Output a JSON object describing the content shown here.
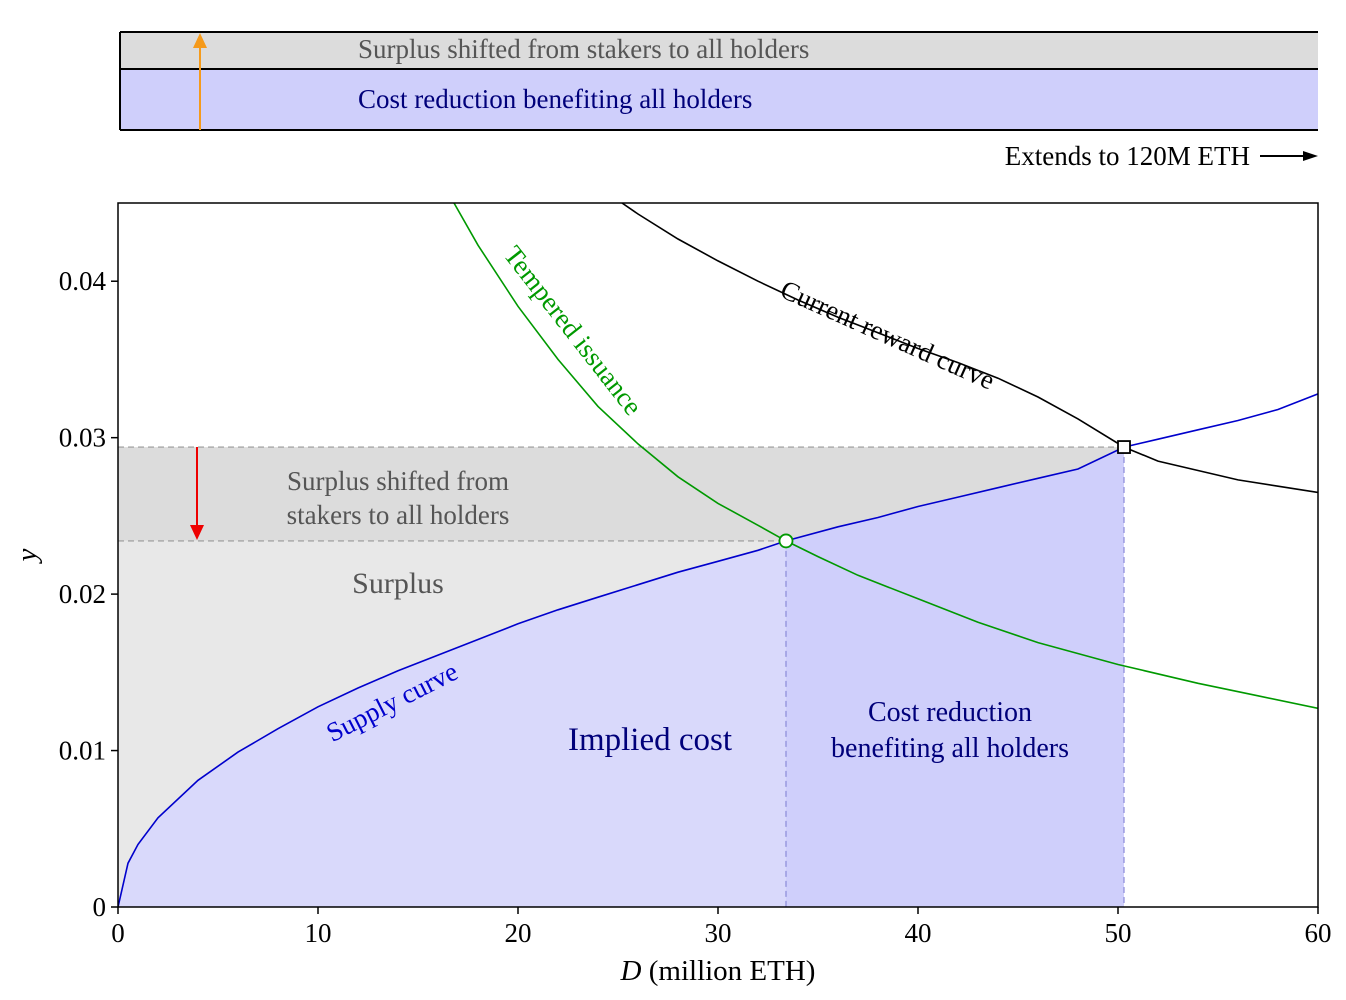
{
  "chart_data": {
    "type": "line",
    "xlabel_italic": "D",
    "xlabel_rest": " (million ETH)",
    "ylabel": "y",
    "xlim": [
      0,
      60
    ],
    "ylim": [
      0,
      0.045
    ],
    "x_ticks": [
      0,
      10,
      20,
      30,
      40,
      50,
      60
    ],
    "x_tick_labels": [
      "0",
      "10",
      "20",
      "30",
      "40",
      "50",
      "60"
    ],
    "y_ticks": [
      0,
      0.01,
      0.02,
      0.03,
      0.04
    ],
    "y_tick_labels": [
      "0",
      "0.01",
      "0.02",
      "0.03",
      "0.04"
    ],
    "grid": false,
    "series": [
      {
        "name": "Supply curve",
        "color": "#0000cc",
        "points": [
          [
            0,
            0
          ],
          [
            0.5,
            0.0028
          ],
          [
            1,
            0.004
          ],
          [
            2,
            0.0057
          ],
          [
            4,
            0.0081
          ],
          [
            6,
            0.0099
          ],
          [
            8,
            0.0114
          ],
          [
            10,
            0.0128
          ],
          [
            12,
            0.014
          ],
          [
            14,
            0.0151
          ],
          [
            16,
            0.0161
          ],
          [
            18,
            0.0171
          ],
          [
            20,
            0.0181
          ],
          [
            22,
            0.019
          ],
          [
            24,
            0.0198
          ],
          [
            26,
            0.0206
          ],
          [
            28,
            0.0214
          ],
          [
            30,
            0.0221
          ],
          [
            32,
            0.0228
          ],
          [
            33.4,
            0.0234
          ],
          [
            36,
            0.0243
          ],
          [
            38,
            0.0249
          ],
          [
            40,
            0.0256
          ],
          [
            42,
            0.0262
          ],
          [
            44,
            0.0268
          ],
          [
            46,
            0.0274
          ],
          [
            48,
            0.028
          ],
          [
            50.3,
            0.0294
          ],
          [
            52,
            0.0299
          ],
          [
            54,
            0.0305
          ],
          [
            56,
            0.0311
          ],
          [
            58,
            0.0318
          ],
          [
            60,
            0.0328
          ]
        ]
      },
      {
        "name": "Current reward curve",
        "color": "#000000",
        "points": [
          [
            25.2,
            0.045
          ],
          [
            26,
            0.0443
          ],
          [
            28,
            0.0427
          ],
          [
            30,
            0.0413
          ],
          [
            32,
            0.04
          ],
          [
            34,
            0.0388
          ],
          [
            36,
            0.0377
          ],
          [
            38,
            0.0367
          ],
          [
            40,
            0.0357
          ],
          [
            42,
            0.0348
          ],
          [
            44,
            0.0338
          ],
          [
            46,
            0.0326
          ],
          [
            48,
            0.0312
          ],
          [
            50.3,
            0.0294
          ],
          [
            52,
            0.0285
          ],
          [
            54,
            0.0279
          ],
          [
            56,
            0.0273
          ],
          [
            58,
            0.0269
          ],
          [
            60,
            0.0265
          ]
        ]
      },
      {
        "name": "Tempered issuance",
        "color": "#009900",
        "points": [
          [
            16.8,
            0.045
          ],
          [
            18,
            0.0423
          ],
          [
            20,
            0.0384
          ],
          [
            22,
            0.035
          ],
          [
            24,
            0.032
          ],
          [
            26,
            0.0296
          ],
          [
            28,
            0.0275
          ],
          [
            30,
            0.0258
          ],
          [
            32,
            0.0244
          ],
          [
            33.4,
            0.0234
          ],
          [
            35,
            0.0224
          ],
          [
            37,
            0.0212
          ],
          [
            40,
            0.0197
          ],
          [
            43,
            0.0182
          ],
          [
            46,
            0.0169
          ],
          [
            50,
            0.0155
          ],
          [
            54,
            0.0143
          ],
          [
            57,
            0.0135
          ],
          [
            60,
            0.0127
          ]
        ]
      }
    ],
    "current_equilibrium": {
      "x": 50.3,
      "y": 0.0294
    },
    "tempered_equilibrium": {
      "x": 33.4,
      "y": 0.0234
    },
    "annotations": {
      "surplus_shift": "Surplus shifted from stakers to all holders",
      "surplus_shift_line1": "Surplus shifted from",
      "surplus_shift_line2": "stakers to all holders",
      "surplus": "Surplus",
      "implied_cost": "Implied cost",
      "cost_reduction": "Cost reduction benefiting all holders",
      "cost_reduction_line1": "Cost reduction",
      "cost_reduction_line2": "benefiting all holders",
      "extends": "Extends to 120M ETH"
    },
    "colors": {
      "surplus_fill": "#e8e8e8",
      "surplus_shift_fill": "#dcdcdc",
      "implied_cost_fill": "#d9d9fb",
      "cost_reduction_fill": "#cfcffb",
      "surplus_text": "#555555",
      "cost_text": "#00007a",
      "red_arrow": "#ee0000",
      "orange_arrow": "#f59a1b"
    }
  }
}
